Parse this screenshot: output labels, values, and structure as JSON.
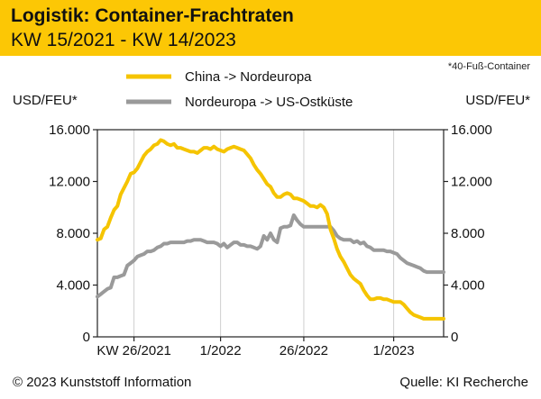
{
  "header": {
    "title": "Logistik: Container-Frachtraten",
    "subtitle": "KW 15/2021 - KW 14/2023"
  },
  "footnote": "*40-Fuß-Container",
  "units": {
    "left": "USD/FEU*",
    "right": "USD/FEU*"
  },
  "footer": {
    "copyright": "© 2023 Kunststoff Information",
    "source": "Quelle: KI Recherche"
  },
  "colors": {
    "accent": "#fcc705",
    "china_line": "#f5c400",
    "us_line": "#9a9a9a"
  },
  "chart_data": {
    "type": "line",
    "title": "Logistik: Container-Frachtraten",
    "subtitle": "KW 15/2021 - KW 14/2023",
    "ylabel": "USD/FEU*",
    "ylim": [
      0,
      16000
    ],
    "yticks": [
      "16.000",
      "12.000",
      "8.000",
      "4.000",
      "0"
    ],
    "ytick_values": [
      16000,
      12000,
      8000,
      4000,
      0
    ],
    "xlim": [
      0,
      104
    ],
    "xticks": [
      {
        "label": "KW 26/2021",
        "x": 11
      },
      {
        "label": "1/2022",
        "x": 37
      },
      {
        "label": "26/2022",
        "x": 62
      },
      {
        "label": "1/2023",
        "x": 89
      }
    ],
    "grid": "vertical",
    "legend_position": "top",
    "series": [
      {
        "name": "China -> Nordeuropa",
        "color": "#f5c400",
        "x": [
          0,
          1,
          2,
          3,
          4,
          5,
          6,
          7,
          8,
          9,
          10,
          11,
          12,
          13,
          14,
          15,
          16,
          17,
          18,
          19,
          20,
          21,
          22,
          23,
          24,
          25,
          26,
          27,
          28,
          29,
          30,
          31,
          32,
          33,
          34,
          35,
          36,
          37,
          38,
          39,
          40,
          41,
          42,
          43,
          44,
          45,
          46,
          47,
          48,
          49,
          50,
          51,
          52,
          53,
          54,
          55,
          56,
          57,
          58,
          59,
          60,
          61,
          62,
          63,
          64,
          65,
          66,
          67,
          68,
          69,
          70,
          71,
          72,
          73,
          74,
          75,
          76,
          77,
          78,
          79,
          80,
          81,
          82,
          83,
          84,
          85,
          86,
          87,
          88,
          89,
          90,
          91,
          92,
          93,
          94,
          95,
          96,
          97,
          98,
          99,
          100,
          101,
          102,
          103,
          104
        ],
        "values": [
          7500,
          7600,
          8300,
          8500,
          9200,
          9800,
          10100,
          11000,
          11500,
          12000,
          12600,
          12700,
          13000,
          13500,
          14000,
          14300,
          14500,
          14800,
          14900,
          15200,
          15100,
          14900,
          14800,
          14900,
          14600,
          14600,
          14500,
          14400,
          14300,
          14300,
          14200,
          14400,
          14600,
          14600,
          14500,
          14700,
          14500,
          14400,
          14300,
          14500,
          14600,
          14700,
          14600,
          14500,
          14400,
          14100,
          13800,
          13300,
          12900,
          12600,
          12200,
          11800,
          11600,
          11100,
          10800,
          10800,
          11000,
          11100,
          11000,
          10700,
          10700,
          10600,
          10500,
          10300,
          10100,
          10100,
          10000,
          10200,
          10000,
          9500,
          8300,
          7600,
          6800,
          6200,
          5800,
          5300,
          4800,
          4500,
          4300,
          4100,
          3600,
          3200,
          2900,
          2900,
          3000,
          3000,
          2900,
          2900,
          2800,
          2700,
          2700,
          2700,
          2500,
          2200,
          1900,
          1700,
          1600,
          1500,
          1400,
          1400,
          1400,
          1400,
          1400,
          1400,
          1400
        ]
      },
      {
        "name": "Nordeuropa -> US-Ostküste",
        "color": "#9a9a9a",
        "x": [
          0,
          1,
          2,
          3,
          4,
          5,
          6,
          7,
          8,
          9,
          10,
          11,
          12,
          13,
          14,
          15,
          16,
          17,
          18,
          19,
          20,
          21,
          22,
          23,
          24,
          25,
          26,
          27,
          28,
          29,
          30,
          31,
          32,
          33,
          34,
          35,
          36,
          37,
          38,
          39,
          40,
          41,
          42,
          43,
          44,
          45,
          46,
          47,
          48,
          49,
          50,
          51,
          52,
          53,
          54,
          55,
          56,
          57,
          58,
          59,
          60,
          61,
          62,
          63,
          64,
          65,
          66,
          67,
          68,
          69,
          70,
          71,
          72,
          73,
          74,
          75,
          76,
          77,
          78,
          79,
          80,
          81,
          82,
          83,
          84,
          85,
          86,
          87,
          88,
          89,
          90,
          91,
          92,
          93,
          94,
          95,
          96,
          97,
          98,
          99,
          100,
          101,
          102,
          103,
          104
        ],
        "values": [
          3100,
          3300,
          3500,
          3700,
          3800,
          4600,
          4600,
          4700,
          4800,
          5500,
          5700,
          5900,
          6200,
          6300,
          6400,
          6600,
          6600,
          6700,
          6900,
          7000,
          7200,
          7200,
          7300,
          7300,
          7300,
          7300,
          7300,
          7400,
          7400,
          7500,
          7500,
          7500,
          7400,
          7300,
          7300,
          7300,
          7200,
          7000,
          7200,
          6900,
          7100,
          7300,
          7300,
          7100,
          7100,
          7000,
          7000,
          6900,
          6800,
          7000,
          7800,
          7500,
          8000,
          7500,
          7300,
          8400,
          8500,
          8500,
          8600,
          9400,
          9000,
          8700,
          8500,
          8500,
          8500,
          8500,
          8500,
          8500,
          8500,
          8500,
          8500,
          8200,
          7800,
          7600,
          7500,
          7500,
          7500,
          7300,
          7400,
          7200,
          7300,
          7000,
          6900,
          6700,
          6700,
          6700,
          6700,
          6600,
          6600,
          6500,
          6400,
          6100,
          5900,
          5700,
          5600,
          5500,
          5400,
          5300,
          5100,
          5000,
          5000,
          5000,
          5000,
          5000,
          5000
        ]
      }
    ]
  }
}
